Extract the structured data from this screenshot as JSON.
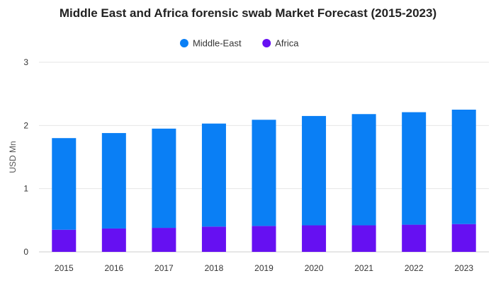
{
  "chart_data": {
    "type": "bar",
    "stacked": true,
    "title": "Middle East and Africa forensic swab Market Forecast (2015-2023)",
    "xlabel": "",
    "ylabel": "USD Mn",
    "categories": [
      "2015",
      "2016",
      "2017",
      "2018",
      "2019",
      "2020",
      "2021",
      "2022",
      "2023"
    ],
    "series": [
      {
        "name": "Africa",
        "color": "#6610f2",
        "values": [
          0.35,
          0.37,
          0.38,
          0.4,
          0.41,
          0.42,
          0.42,
          0.43,
          0.44
        ]
      },
      {
        "name": "Middle-East",
        "color": "#0a7ff5",
        "values": [
          1.45,
          1.51,
          1.57,
          1.63,
          1.68,
          1.73,
          1.76,
          1.78,
          1.81
        ]
      }
    ],
    "legend_order": [
      "Middle-East",
      "Africa"
    ],
    "legend_position": "top-center",
    "ylim": [
      0,
      3
    ],
    "yticks": [
      0,
      1,
      2,
      3
    ],
    "grid": true
  }
}
